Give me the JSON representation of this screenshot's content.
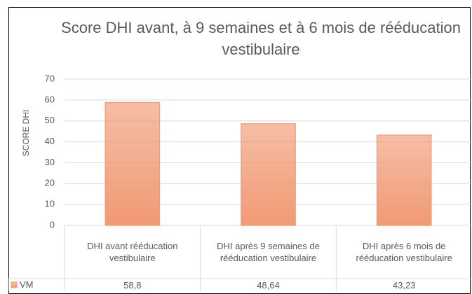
{
  "chart_data": {
    "type": "bar",
    "title": "Score DHI avant, à 9 semaines et à 6 mois de rééducation vestibulaire",
    "y_label": "SCORE DHI",
    "categories": [
      "DHI avant rééducation vestibulaire",
      "DHI après 9 semaines de rééducation vestibulaire",
      "DHI après 6 mois de rééducation vestibulaire"
    ],
    "series": [
      {
        "name": "VM",
        "color": "#f19a74",
        "values": [
          58.8,
          48.64,
          43.23
        ],
        "value_labels": [
          "58,8",
          "48,64",
          "43,23"
        ]
      }
    ],
    "ylim": [
      0,
      70
    ],
    "yticks": [
      0,
      10,
      20,
      30,
      40,
      50,
      60,
      70
    ],
    "grid": true,
    "data_table": true
  }
}
